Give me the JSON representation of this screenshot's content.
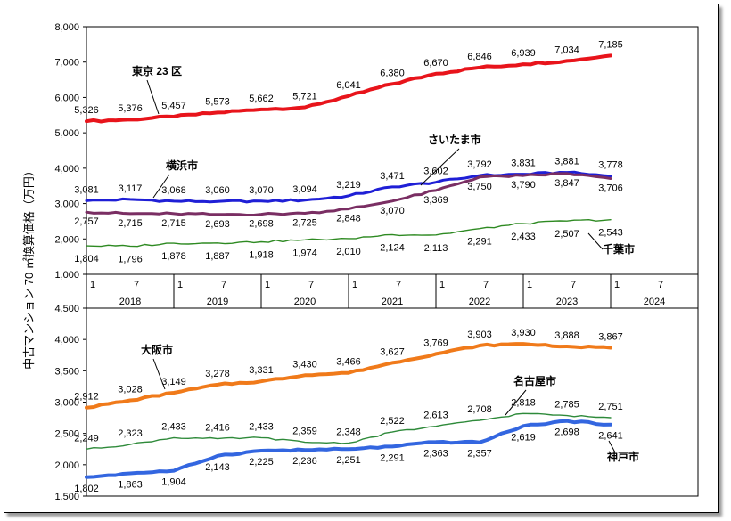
{
  "ylabel": "中古マンション 70 ㎡換算価格（万円）",
  "chart_data": [
    {
      "type": "line",
      "ylim": [
        1000,
        8000
      ],
      "yticks": [
        "1,000",
        "2,000",
        "3,000",
        "4,000",
        "5,000",
        "6,000",
        "7,000",
        "8,000"
      ],
      "x_month_ticks": [
        "1",
        "7",
        "1",
        "7",
        "1",
        "7",
        "1",
        "7",
        "1",
        "7",
        "1",
        "7",
        "1",
        "7"
      ],
      "x_years": [
        "2018",
        "2019",
        "2020",
        "2021",
        "2022",
        "2023",
        "2024"
      ],
      "series": [
        {
          "name": "東京 23 区",
          "color": "#e8141b",
          "width": 4,
          "values": [
            5326,
            5376,
            5457,
            5573,
            5662,
            5721,
            6041,
            6380,
            6670,
            6846,
            6939,
            7034,
            7185
          ],
          "labels": [
            "5,326",
            "5,376",
            "5,457",
            "5,573",
            "5,662",
            "5,721",
            "6,041",
            "6,380",
            "6,670",
            "6,846",
            "6,939",
            "7,034",
            "7,185"
          ]
        },
        {
          "name": "横浜市",
          "color": "#1f1fd6",
          "width": 3,
          "values": [
            3081,
            3117,
            3068,
            3060,
            3070,
            3094,
            3219,
            3471,
            3602,
            3792,
            3831,
            3881,
            3778
          ],
          "labels": [
            "3,081",
            "3,117",
            "3,068",
            "3,060",
            "3,070",
            "3,094",
            "3,219",
            "3,471",
            "3,602",
            "3,792",
            "3,831",
            "3,881",
            "3,778"
          ]
        },
        {
          "name": "さいたま市",
          "color": "#7a2e63",
          "width": 3,
          "values": [
            2757,
            2715,
            2715,
            2693,
            2698,
            2725,
            2848,
            3070,
            3369,
            3750,
            3790,
            3847,
            3706
          ],
          "labels": [
            "2,757",
            "2,715",
            "2,715",
            "2,693",
            "2,698",
            "2,725",
            "2,848",
            "3,070",
            "3,369",
            "3,750",
            "3,790",
            "3,847",
            "3,706"
          ]
        },
        {
          "name": "千葉市",
          "color": "#2e8a22",
          "width": 1.4,
          "values": [
            1804,
            1796,
            1878,
            1887,
            1918,
            1974,
            2010,
            2124,
            2113,
            2291,
            2433,
            2507,
            2543
          ],
          "labels": [
            "1,804",
            "1,796",
            "1,878",
            "1,887",
            "1,918",
            "1,974",
            "2,010",
            "2,124",
            "2,113",
            "2,291",
            "2,433",
            "2,507",
            "2,543"
          ]
        }
      ]
    },
    {
      "type": "line",
      "ylim": [
        1500,
        4500
      ],
      "yticks": [
        "1,500",
        "2,000",
        "2,500",
        "3,000",
        "3,500",
        "4,000",
        "4,500"
      ],
      "series": [
        {
          "name": "大阪市",
          "color": "#f07a1a",
          "width": 4,
          "values": [
            2912,
            3028,
            3149,
            3278,
            3331,
            3430,
            3466,
            3627,
            3769,
            3903,
            3930,
            3888,
            3867
          ],
          "labels": [
            "2,912",
            "3,028",
            "3,149",
            "3,278",
            "3,331",
            "3,430",
            "3,466",
            "3,627",
            "3,769",
            "3,903",
            "3,930",
            "3,888",
            "3,867"
          ]
        },
        {
          "name": "名古屋市",
          "color": "#2e8a3a",
          "width": 1.4,
          "values": [
            2249,
            2323,
            2433,
            2416,
            2433,
            2359,
            2348,
            2522,
            2613,
            2708,
            2818,
            2785,
            2751
          ],
          "labels": [
            "2,249",
            "2,323",
            "2,433",
            "2,416",
            "2,433",
            "2,359",
            "2,348",
            "2,522",
            "2,613",
            "2,708",
            "2,818",
            "2,785",
            "2,751"
          ]
        },
        {
          "name": "神戸市",
          "color": "#3366e0",
          "width": 4,
          "values": [
            1802,
            1863,
            1904,
            2143,
            2225,
            2236,
            2251,
            2291,
            2363,
            2357,
            2619,
            2698,
            2641
          ],
          "labels": [
            "1,802",
            "1,863",
            "1,904",
            "2,143",
            "2,225",
            "2,236",
            "2,251",
            "2,291",
            "2,363",
            "2,357",
            "2,619",
            "2,698",
            "2,641"
          ]
        }
      ]
    }
  ]
}
